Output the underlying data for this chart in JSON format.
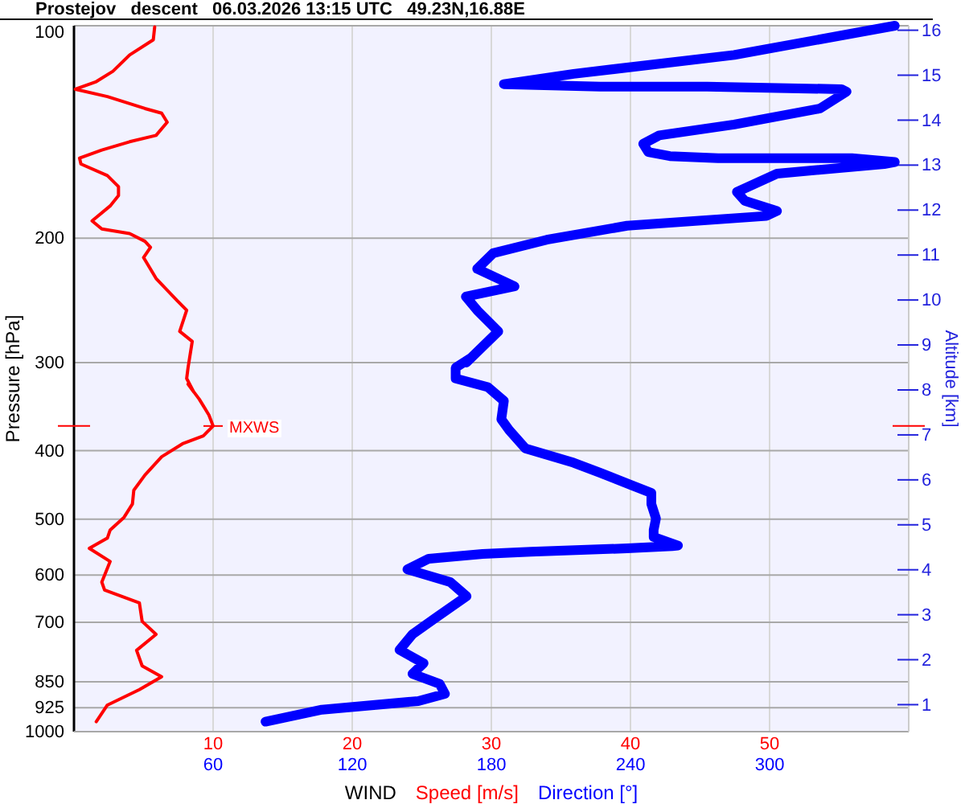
{
  "chart_data": {
    "type": "line",
    "orientation": "horizontal",
    "title": "Prostejov   descent   06.03.2026 13:15 UTC   49.23N,16.88E",
    "xlabel": "WIND",
    "ylabel": "Pressure [hPa]",
    "y2label": "Altitude [km]",
    "log": "y",
    "grid": true,
    "legend": "bottom",
    "line_style": "solid",
    "xlim": [
      0,
      60
    ],
    "xticks": [
      10,
      20,
      30,
      40,
      50
    ],
    "x2lim": [
      0,
      360
    ],
    "x2ticks": [
      60,
      120,
      180,
      240,
      300
    ],
    "ylim": [
      1000,
      100
    ],
    "yticks": [
      100,
      200,
      300,
      400,
      500,
      600,
      700,
      850,
      925,
      1000
    ],
    "y2lim": [
      0.4,
      16.1
    ],
    "y2ticks": [
      1,
      2,
      3,
      4,
      5,
      6,
      7,
      8,
      9,
      10,
      11,
      12,
      13,
      14,
      15,
      16
    ],
    "annotations": [
      {
        "text": "MXWS",
        "x": 10,
        "y": 369
      }
    ],
    "series": [
      {
        "name": "Speed [m/s]",
        "color": "#ff0000",
        "values": [
          1.6,
          2.4,
          4.7,
          6.3,
          4.9,
          4.5,
          5.9,
          4.9,
          4.7,
          2.2,
          2.0,
          2.6,
          1.1,
          2.4,
          2.6,
          3.6,
          4.2,
          4.3,
          5.1,
          6.3,
          7.8,
          9.3,
          10,
          9.7,
          9.0,
          8.2,
          8.6,
          8.1,
          8.2,
          8.5,
          7.6,
          8.1,
          7.4,
          5.9,
          5.0,
          5.5,
          5.1,
          4.0,
          2.0,
          1.3,
          2.6,
          3.2,
          3.2,
          2.4,
          0.5,
          0.4,
          2.0,
          4.0,
          5.9,
          6.7,
          6.3,
          5.1,
          2.4,
          0.1,
          1.6,
          2.8,
          4.0,
          5.7,
          5.8
        ],
        "x": [
          968,
          917,
          872,
          836,
          807,
          767,
          728,
          698,
          657,
          630,
          614,
          574,
          550,
          532,
          518,
          497,
          476,
          455,
          433,
          408,
          391,
          381,
          369,
          356,
          338,
          322,
          330,
          316,
          305,
          280,
          271,
          253,
          245,
          228,
          213,
          206,
          202,
          197,
          194,
          189,
          180,
          174,
          169,
          163,
          157,
          154,
          150,
          146,
          143,
          137,
          133,
          131,
          126,
          123,
          120,
          116,
          110,
          104.7,
          100.4
        ]
      },
      {
        "name": "Direction [°]",
        "color": "#0000ff",
        "axis": "x2",
        "values": [
          82.6,
          106.9,
          148.5,
          160,
          157.7,
          146,
          150.8,
          140.4,
          146,
          155.4,
          169.3,
          162.3,
          143.8,
          153,
          176.2,
          197,
          238.5,
          258,
          260.5,
          250,
          250,
          251,
          249,
          249,
          240.8,
          227,
          215.5,
          194.7,
          187.7,
          184.3,
          185.4,
          178.5,
          164.6,
          164.6,
          171.5,
          169.2,
          183,
          173.9,
          169,
          190,
          173.9,
          180.8,
          203.9,
          238.5,
          298.6,
          303.2,
          289.3,
          285.9,
          303.2,
          349.4,
          354,
          335.5,
          277.8,
          257,
          247.7,
          245.5,
          252.4,
          284.7,
          321.7,
          333.2,
          331,
          273,
          227,
          185.4,
          215.5,
          284.7,
          354
        ],
        "x": [
          968,
          931,
          905,
          884,
          856,
          828,
          800,
          766,
          728,
          692,
          643,
          614,
          589,
          569,
          560,
          556,
          550,
          546,
          545,
          530,
          518,
          499,
          476,
          459,
          448,
          430,
          416,
          397,
          374,
          361,
          340,
          325,
          316,
          305,
          295,
          300,
          271,
          253,
          242,
          234,
          221,
          210,
          201,
          192,
          186,
          183,
          177,
          172,
          162,
          157,
          156,
          154,
          154,
          153,
          151,
          147,
          143,
          138,
          131,
          124,
          123,
          122,
          122,
          121,
          117,
          110,
          100
        ]
      }
    ]
  }
}
